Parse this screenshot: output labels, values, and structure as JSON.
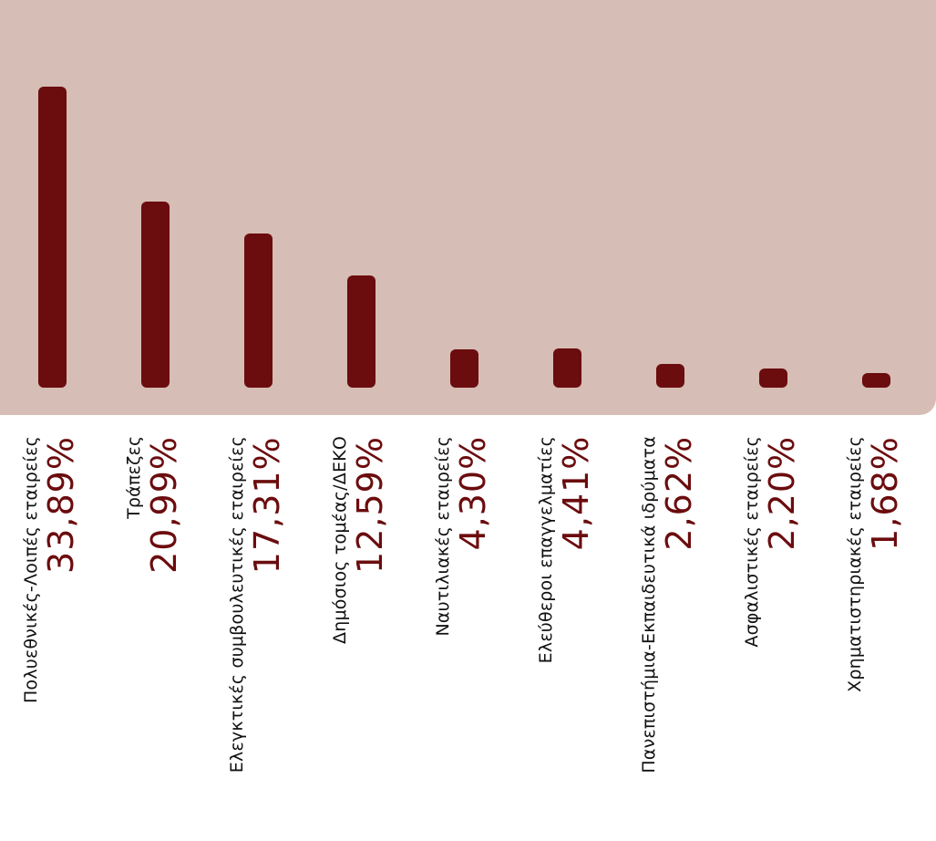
{
  "chart_data": {
    "type": "bar",
    "categories": [
      "Πολυεθνικές-Λοιπές εταιρείες",
      "Τράπεζες",
      "Ελεγκτικές συμβουλευτικές εταιρείες",
      "Δημόσιος τομέας/ΔΕΚΟ",
      "Ναυτιλιακές εταιρείες",
      "Ελεύθεροι επαγγελματίες",
      "Πανεπιστήμια-Εκπαιδευτικά ιδρύματα",
      "Ασφαλιστικές εταιρείες",
      "Χρηματιστηριακές εταιρείες"
    ],
    "values": [
      33.89,
      20.99,
      17.31,
      12.59,
      4.3,
      4.41,
      2.62,
      2.2,
      1.68
    ],
    "value_labels": [
      "33,89%",
      "20,99%",
      "17,31%",
      "12,59%",
      "4,30%",
      "4,41%",
      "2,62%",
      "2,20%",
      "1,68%"
    ],
    "ylim": [
      0,
      33.89
    ],
    "grid": false,
    "colors": {
      "bar": "#6b0c0e",
      "plot_background": "#d6bdb5",
      "category_text": "#111111",
      "value_text": "#6b0c0e"
    }
  }
}
